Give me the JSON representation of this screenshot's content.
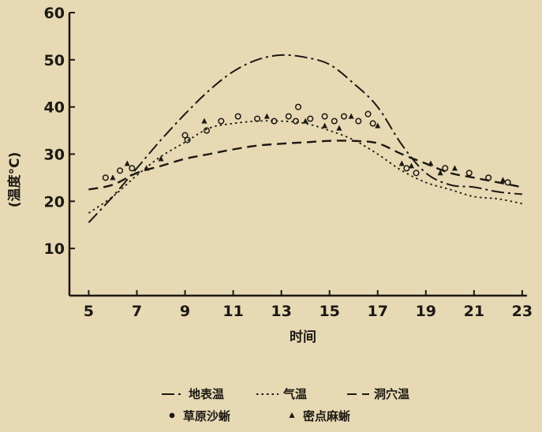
{
  "chart_data": {
    "type": "line",
    "xlabel": "时间",
    "ylabel": "(温度°C)",
    "xlim": [
      4.2,
      23.2
    ],
    "ylim": [
      0,
      60
    ],
    "xticks": [
      5,
      7,
      9,
      11,
      13,
      15,
      17,
      19,
      21,
      23
    ],
    "yticks": [
      10,
      20,
      30,
      40,
      50,
      60
    ],
    "grid": false,
    "legend_position": "bottom",
    "series": [
      {
        "name": "地表温",
        "style": "dash-dot",
        "x": [
          5,
          6,
          7,
          8,
          9,
          10,
          11,
          12,
          13,
          14,
          15,
          16,
          17,
          18,
          19,
          20,
          21,
          22,
          23
        ],
        "y": [
          15.5,
          21,
          27,
          33,
          38.5,
          43.5,
          47.5,
          50,
          51,
          50.5,
          49,
          45,
          40,
          32,
          26,
          23.5,
          23,
          22,
          21.5
        ]
      },
      {
        "name": "气温",
        "style": "dotted",
        "x": [
          5,
          6,
          7,
          8,
          9,
          10,
          11,
          12,
          13,
          14,
          15,
          16,
          17,
          18,
          19,
          20,
          21,
          22,
          23
        ],
        "y": [
          17.5,
          21,
          25.5,
          29.5,
          32.5,
          35.5,
          36.5,
          37,
          37,
          36.5,
          35,
          33,
          30,
          26.5,
          24,
          22.5,
          21,
          20.5,
          19.5
        ]
      },
      {
        "name": "洞穴温",
        "style": "dashed",
        "x": [
          5,
          6,
          7,
          8,
          9,
          10,
          11,
          12,
          13,
          14,
          15,
          16,
          17,
          18,
          19,
          20,
          21,
          22,
          23
        ],
        "y": [
          22.5,
          23.5,
          26,
          27.5,
          29,
          30,
          31,
          31.8,
          32.2,
          32.5,
          32.8,
          32.8,
          32.3,
          30,
          28,
          26,
          25,
          24,
          23
        ]
      }
    ],
    "scatter_series": [
      {
        "name": "草原沙蜥",
        "marker": "circle",
        "points": [
          [
            5.7,
            25
          ],
          [
            6.3,
            26.5
          ],
          [
            6.8,
            27
          ],
          [
            9.0,
            34
          ],
          [
            9.1,
            33
          ],
          [
            9.9,
            35
          ],
          [
            10.5,
            37
          ],
          [
            11.2,
            38
          ],
          [
            12.0,
            37.5
          ],
          [
            12.7,
            37
          ],
          [
            13.3,
            38
          ],
          [
            13.7,
            40
          ],
          [
            13.6,
            37
          ],
          [
            14.2,
            37.5
          ],
          [
            14.8,
            38
          ],
          [
            15.2,
            37
          ],
          [
            15.6,
            38
          ],
          [
            16.2,
            37
          ],
          [
            16.6,
            38.5
          ],
          [
            16.8,
            36.5
          ],
          [
            18.2,
            27
          ],
          [
            18.6,
            26
          ],
          [
            19.8,
            27
          ],
          [
            20.8,
            26
          ],
          [
            21.6,
            25
          ],
          [
            22.4,
            24
          ]
        ]
      },
      {
        "name": "密点麻蜥",
        "marker": "triangle",
        "points": [
          [
            6.0,
            25
          ],
          [
            6.6,
            28
          ],
          [
            7.4,
            27
          ],
          [
            8.0,
            29
          ],
          [
            9.8,
            37
          ],
          [
            12.4,
            38
          ],
          [
            14.0,
            37
          ],
          [
            14.8,
            36
          ],
          [
            15.4,
            35.5
          ],
          [
            15.9,
            38
          ],
          [
            17.0,
            36
          ],
          [
            18.0,
            28
          ],
          [
            18.4,
            27.5
          ],
          [
            19.2,
            28
          ],
          [
            19.6,
            26
          ],
          [
            20.2,
            27
          ],
          [
            22.2,
            24.5
          ]
        ]
      }
    ]
  }
}
